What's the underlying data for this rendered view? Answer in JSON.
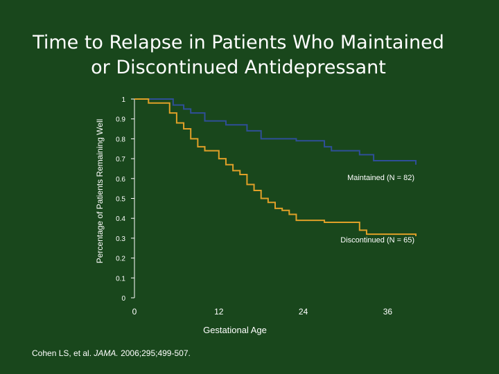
{
  "title": {
    "line1": "Time to Relapse in Patients Who Maintained",
    "line2": "or Discontinued Antidepressant"
  },
  "citation": {
    "before": "Cohen LS, et al. ",
    "journal": "JAMA.",
    "after": " 2006;295;499-507."
  },
  "colors": {
    "background": "#19471c",
    "maintained": "#2f4f98",
    "discontinued": "#e0a028",
    "axis": "#ffffff"
  },
  "chart_data": {
    "type": "line",
    "title": "Time to Relapse in Patients Who Maintained or Discontinued Antidepressant",
    "xlabel": "Gestational Age",
    "ylabel": "Percentage of Patients Remaining Well",
    "xlim": [
      0,
      40
    ],
    "ylim": [
      0,
      1
    ],
    "xticks": [
      "0",
      "12",
      "24",
      "36"
    ],
    "yticks": [
      "0",
      "0.1",
      "0.2",
      "0.3",
      "0.4",
      "0.5",
      "0.6",
      "0.7",
      "0.8",
      "0.9",
      "1"
    ],
    "grid": false,
    "step": true,
    "series": [
      {
        "name": "Maintained (N = 82)",
        "color": "#2f4f98",
        "x": [
          0,
          5,
          5.5,
          7,
          8,
          10,
          13,
          16,
          18,
          23,
          27,
          28,
          32,
          34,
          40
        ],
        "y": [
          1,
          1,
          0.97,
          0.95,
          0.93,
          0.89,
          0.87,
          0.84,
          0.8,
          0.79,
          0.76,
          0.74,
          0.72,
          0.69,
          0.67
        ]
      },
      {
        "name": "Discontinued (N = 65)",
        "color": "#e0a028",
        "x": [
          0,
          2,
          5,
          6,
          7,
          8,
          9,
          10,
          12,
          13,
          14,
          15,
          16,
          17,
          18,
          19,
          20,
          21,
          22,
          23,
          27,
          32,
          33,
          40
        ],
        "y": [
          1,
          0.98,
          0.93,
          0.88,
          0.85,
          0.8,
          0.76,
          0.74,
          0.7,
          0.67,
          0.64,
          0.62,
          0.57,
          0.54,
          0.5,
          0.48,
          0.45,
          0.44,
          0.42,
          0.39,
          0.38,
          0.34,
          0.32,
          0.31
        ]
      }
    ],
    "annotations": [
      "Maintained (N = 82)",
      "Discontinued (N = 65)"
    ]
  }
}
